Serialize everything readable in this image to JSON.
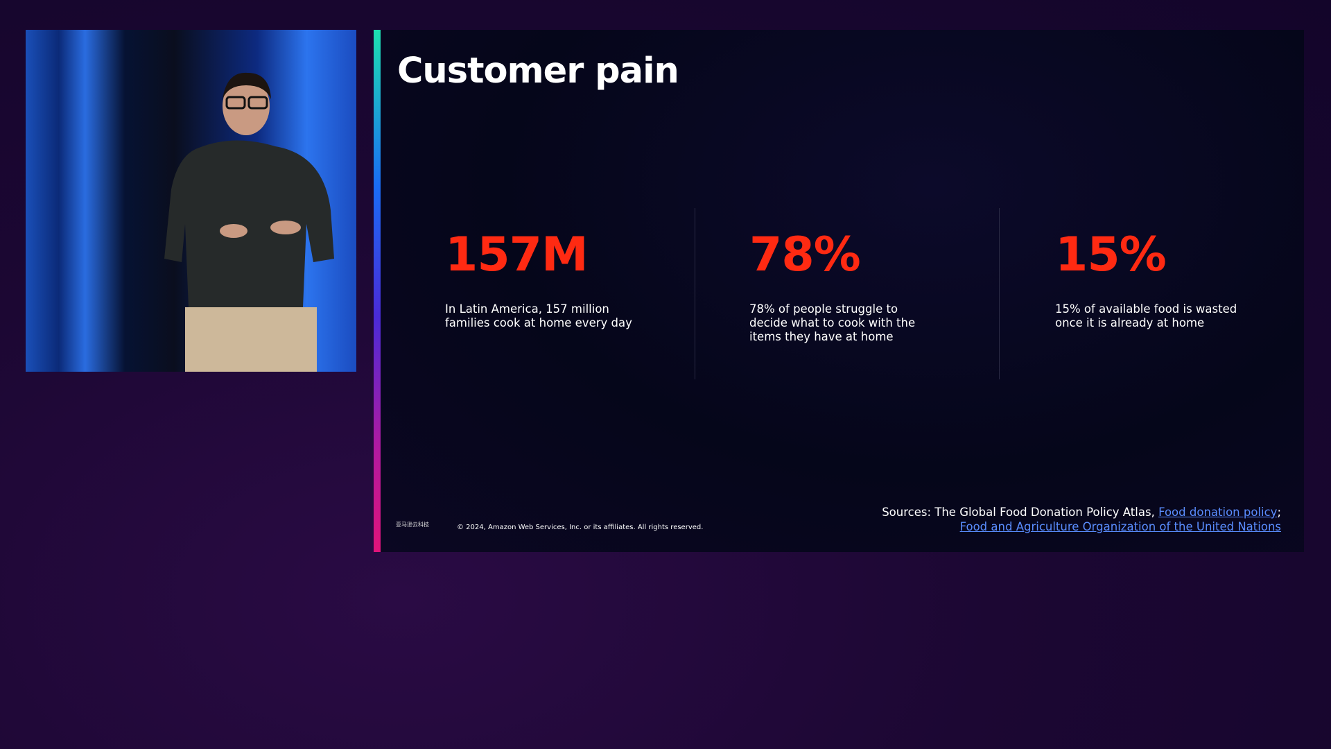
{
  "slide": {
    "title": "Customer pain",
    "stats": [
      {
        "value": "157M",
        "description": "In Latin America, 157 million families cook at home every day"
      },
      {
        "value": "78%",
        "description": "78% of people struggle to decide what to cook with the items they have at home"
      },
      {
        "value": "15%",
        "description": "15% of available food is wasted once it is already at home"
      }
    ],
    "sources": {
      "prefix": "Sources: The Global Food Donation Policy Atlas,",
      "links": [
        "Food donation policy",
        "Food and Agriculture Organization of the United Nations"
      ],
      "separator": ";"
    },
    "logo": "亚马逊云科技",
    "copyright": "© 2024, Amazon Web Services, Inc. or its affiliates. All rights reserved."
  }
}
